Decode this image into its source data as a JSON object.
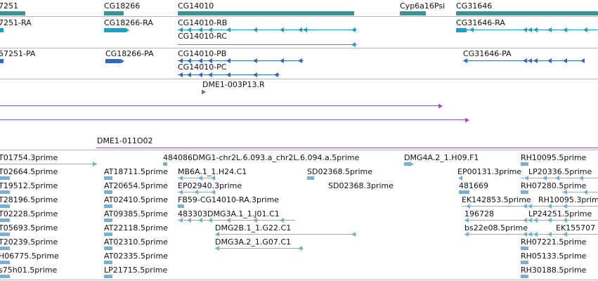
{
  "colors": {
    "gene": "#3a9497",
    "transcript": "#1c9fc0",
    "protein": "#3268c4",
    "oligo": "#8c58b4",
    "est": "#6fb2dc",
    "separator": "#b9b9b9"
  },
  "tracks": {
    "genes": [
      "7251",
      "CG18266",
      "CG14010",
      "Cyp6a16Psi",
      "CG31646"
    ],
    "transcripts": [
      "7251-RA",
      "CG18266-RA",
      "CG14010-RB",
      "CG14010-RC",
      "CG31646-RA"
    ],
    "proteins": [
      "57251-PA",
      "CG18266-PA",
      "CG14010-PB",
      "CG14010-PC",
      "CG31646-PA"
    ],
    "oligos": [
      "DME1-003P13.R",
      "DME1-011O02"
    ],
    "ests": [
      "T01754.3prime",
      "484086DMG1-chr2L.6.093.a_chr2L.6.094.a.5prime",
      "DMG4A.2_1.H09.F1",
      "RH10095.5prime",
      "T02664.5prime",
      "AT18711.5prime",
      "MB6A.1_1.H24.C1",
      "SD02368.5prime",
      "EP00131.3prime",
      "LP20336.5prime",
      "T19512.5prime",
      "AT20654.5prime",
      "EP02940.3prime",
      "SD02368.3prime",
      "481669",
      "RH07280.5prime",
      "T28196.5prime",
      "AT02410.5prime",
      "FB59-CG14010-RA.3prime",
      "EK142853.5prime",
      "RH10095.3prime",
      "T02228.5prime",
      "AT09385.5prime",
      "483303DMG3A.1_1.J01.C1",
      "196728",
      "LP24251.5prime",
      "T05693.5prime",
      "AT22118.5prime",
      "DMG2B.1_1.G22.C1",
      "bs22e08.5prime",
      "EK155707",
      "T20239.5prime",
      "AT02310.5prime",
      "DMG3A.2_1.G07.C1",
      "RH07221.5prime",
      "H06775.5prime",
      "AT02335.5prime",
      "RH05133.5prime",
      "s75h01.5prime",
      "LP21715.5prime",
      "RH30188.5prime"
    ]
  }
}
